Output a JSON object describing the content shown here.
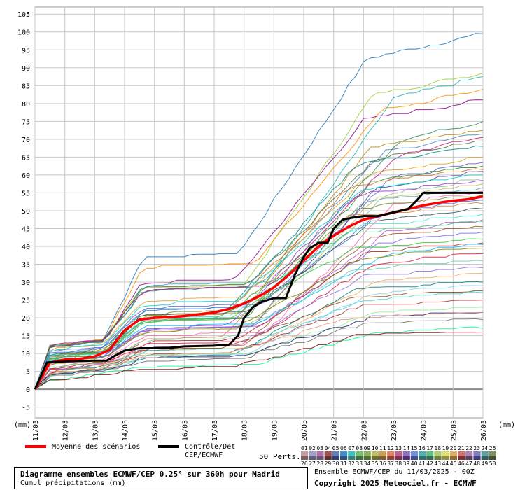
{
  "chart_data": {
    "type": "line",
    "title": "Diagramme ensembles ECMWF/CEP 0.25° sur 360h pour Madrid",
    "subtitle": "Cumul précipitations (mm)",
    "ylabel_left": "(mm)",
    "ylabel_right": "(mm)",
    "ylim": [
      -8,
      107
    ],
    "yticks": [
      -5,
      0,
      5,
      10,
      15,
      20,
      25,
      30,
      35,
      40,
      45,
      50,
      55,
      60,
      65,
      70,
      75,
      80,
      85,
      90,
      95,
      100,
      105
    ],
    "x_dates": [
      "11/03",
      "12/03",
      "13/03",
      "14/03",
      "15/03",
      "16/03",
      "17/03",
      "18/03",
      "19/03",
      "20/03",
      "21/03",
      "22/03",
      "23/03",
      "24/03",
      "25/03",
      "26/03"
    ],
    "x_units": "days after 11/03",
    "grid": true,
    "mean": {
      "name": "Moyenne des scénarios",
      "color": "#ff0000",
      "points": [
        [
          0,
          0
        ],
        [
          0.5,
          7.5
        ],
        [
          1,
          8.3
        ],
        [
          1.5,
          8.5
        ],
        [
          2,
          9.2
        ],
        [
          2.5,
          11
        ],
        [
          3,
          16.5
        ],
        [
          3.5,
          19.5
        ],
        [
          4,
          20
        ],
        [
          4.5,
          20.2
        ],
        [
          5,
          20.5
        ],
        [
          5.5,
          21
        ],
        [
          6,
          21.5
        ],
        [
          6.5,
          22.5
        ],
        [
          7,
          24
        ],
        [
          7.5,
          26
        ],
        [
          8,
          28.5
        ],
        [
          8.5,
          32
        ],
        [
          9,
          36
        ],
        [
          9.5,
          40
        ],
        [
          10,
          43
        ],
        [
          10.5,
          45.5
        ],
        [
          11,
          47.5
        ],
        [
          11.5,
          48.5
        ],
        [
          12,
          49.5
        ],
        [
          12.5,
          50.5
        ],
        [
          13,
          51.5
        ],
        [
          13.5,
          52.2
        ],
        [
          14,
          52.8
        ],
        [
          14.5,
          53.2
        ],
        [
          15,
          54
        ]
      ]
    },
    "control": {
      "name": "Contrôle/Det CEP/ECMWF",
      "color": "#000000",
      "points": [
        [
          0,
          0
        ],
        [
          0.4,
          7.5
        ],
        [
          1,
          7.8
        ],
        [
          2,
          8
        ],
        [
          2.4,
          8
        ],
        [
          2.6,
          9
        ],
        [
          3,
          10.8
        ],
        [
          3.5,
          11.5
        ],
        [
          4,
          11.5
        ],
        [
          4.5,
          11.6
        ],
        [
          5,
          12
        ],
        [
          6,
          12.2
        ],
        [
          6.5,
          12.5
        ],
        [
          6.8,
          15
        ],
        [
          7,
          20
        ],
        [
          7.3,
          23
        ],
        [
          7.6,
          24.5
        ],
        [
          8,
          25.5
        ],
        [
          8.4,
          25.5
        ],
        [
          8.7,
          32
        ],
        [
          9,
          37
        ],
        [
          9.2,
          39.5
        ],
        [
          9.5,
          41
        ],
        [
          9.8,
          41
        ],
        [
          10,
          45
        ],
        [
          10.3,
          47.5
        ],
        [
          10.6,
          48
        ],
        [
          11,
          48.5
        ],
        [
          11.5,
          48.5
        ],
        [
          12,
          49.5
        ],
        [
          12.5,
          50.5
        ],
        [
          12.8,
          53
        ],
        [
          13,
          55
        ],
        [
          14,
          55
        ],
        [
          15,
          55
        ]
      ]
    },
    "members": [
      {
        "end": 99.5,
        "step": 9.3,
        "s": 0.62
      },
      {
        "end": 88.5,
        "step": 9.5,
        "s": 0.55
      },
      {
        "end": 87.5,
        "step": 10.2,
        "s": 0.7
      },
      {
        "end": 84,
        "step": 9.8,
        "s": 0.6
      },
      {
        "end": 81,
        "step": 9.2,
        "s": 0.55
      },
      {
        "end": 75,
        "step": 10.4,
        "s": 0.6
      },
      {
        "end": 72.5,
        "step": 9.4,
        "s": 0.58
      },
      {
        "end": 71.5,
        "step": 9.9,
        "s": 0.62
      },
      {
        "end": 70.5,
        "step": 10.3,
        "s": 0.6
      },
      {
        "end": 69.5,
        "step": 9.6,
        "s": 0.56
      },
      {
        "end": 68,
        "step": 9.0,
        "s": 0.6
      },
      {
        "end": 65,
        "step": 9.4,
        "s": 0.55
      },
      {
        "end": 63.5,
        "step": 10.1,
        "s": 0.6
      },
      {
        "end": 62.5,
        "step": 9.5,
        "s": 0.58
      },
      {
        "end": 61.5,
        "step": 8.8,
        "s": 0.62
      },
      {
        "end": 61,
        "step": 9.7,
        "s": 0.55
      },
      {
        "end": 60,
        "step": 9.2,
        "s": 0.6
      },
      {
        "end": 59,
        "step": 10.0,
        "s": 0.58
      },
      {
        "end": 58.5,
        "step": 8.9,
        "s": 0.55
      },
      {
        "end": 57.5,
        "step": 9.6,
        "s": 0.6
      },
      {
        "end": 56.5,
        "step": 9.3,
        "s": 0.57
      },
      {
        "end": 55.5,
        "step": 10.2,
        "s": 0.55
      },
      {
        "end": 54.5,
        "step": 9.1,
        "s": 0.6
      },
      {
        "end": 53,
        "step": 9.8,
        "s": 0.58
      },
      {
        "end": 52,
        "step": 8.7,
        "s": 0.55
      },
      {
        "end": 50.5,
        "step": 9.5,
        "s": 0.6
      },
      {
        "end": 49,
        "step": 9.0,
        "s": 0.55
      },
      {
        "end": 47.5,
        "step": 10.0,
        "s": 0.58
      },
      {
        "end": 47,
        "step": 8.6,
        "s": 0.6
      },
      {
        "end": 45.5,
        "step": 9.4,
        "s": 0.55
      },
      {
        "end": 44,
        "step": 9.8,
        "s": 0.57
      },
      {
        "end": 42,
        "step": 8.8,
        "s": 0.6
      },
      {
        "end": 41,
        "step": 9.3,
        "s": 0.55
      },
      {
        "end": 40.5,
        "step": 9.9,
        "s": 0.58
      },
      {
        "end": 39.5,
        "step": 9.1,
        "s": 0.6
      },
      {
        "end": 38,
        "step": 9.6,
        "s": 0.55
      },
      {
        "end": 36,
        "step": 8.9,
        "s": 0.57
      },
      {
        "end": 34,
        "step": 9.2,
        "s": 0.6
      },
      {
        "end": 32.5,
        "step": 9.7,
        "s": 0.55
      },
      {
        "end": 30,
        "step": 9.0,
        "s": 0.58
      },
      {
        "end": 29,
        "step": 9.5,
        "s": 0.6
      },
      {
        "end": 27.5,
        "step": 8.8,
        "s": 0.55
      },
      {
        "end": 27,
        "step": 9.3,
        "s": 0.57
      },
      {
        "end": 25,
        "step": 9.1,
        "s": 0.6
      },
      {
        "end": 23,
        "step": 9.6,
        "s": 0.55
      },
      {
        "end": 21.5,
        "step": 9.4,
        "s": 0.58
      },
      {
        "end": 21.5,
        "step": 8.9,
        "s": 0.6
      },
      {
        "end": 19.5,
        "step": 9.2,
        "s": 0.55
      },
      {
        "end": 17,
        "step": 9.7,
        "s": 0.57
      },
      {
        "end": 16,
        "step": 9.0,
        "s": 0.6
      }
    ]
  },
  "legend": {
    "mean_label": "Moyenne des scénarios",
    "control_label_1": "Contrôle/Det",
    "control_label_2": "CEP/ECMWF",
    "perts_label": "50 Perts.",
    "perts_top": [
      "01",
      "02",
      "03",
      "04",
      "05",
      "06",
      "07",
      "08",
      "09",
      "10",
      "11",
      "12",
      "13",
      "14",
      "15",
      "16",
      "17",
      "18",
      "19",
      "20",
      "21",
      "22",
      "23",
      "24",
      "25"
    ],
    "perts_bottom": [
      "26",
      "27",
      "28",
      "29",
      "30",
      "31",
      "32",
      "33",
      "34",
      "35",
      "36",
      "37",
      "38",
      "39",
      "40",
      "41",
      "42",
      "43",
      "44",
      "45",
      "46",
      "47",
      "48",
      "49",
      "50"
    ],
    "swatch_colors_top": [
      "#c8a0a0",
      "#a0a0c8",
      "#b070b0",
      "#a05050",
      "#6080c0",
      "#4090d0",
      "#40c0c0",
      "#70c070",
      "#90b060",
      "#c0c060",
      "#d0a050",
      "#e08060",
      "#c06090",
      "#9070c0",
      "#7090e0",
      "#50b0b0",
      "#60c080",
      "#b0d070",
      "#e0e070",
      "#e0b060",
      "#d07070",
      "#b080b0",
      "#8080c0",
      "#60a0a0",
      "#809060"
    ],
    "swatch_colors_bottom": [
      "#806060",
      "#606080",
      "#705070",
      "#603030",
      "#304070",
      "#305080",
      "#308080",
      "#407040",
      "#507030",
      "#707030",
      "#806030",
      "#904030",
      "#803050",
      "#503070",
      "#405090",
      "#307070",
      "#307050",
      "#708040",
      "#909040",
      "#907030",
      "#803030",
      "#604060",
      "#404080",
      "#306060",
      "#405030"
    ]
  },
  "footer": {
    "title": "Diagramme ensembles ECMWF/CEP 0.25° sur 360h pour Madrid",
    "subtitle": "Cumul précipitations (mm)",
    "credit_line1": "Ensemble ECMWF/CEP du 11/03/2025 - 00Z",
    "credit_line2": "Copyright 2025 Meteociel.fr - ECMWF"
  }
}
